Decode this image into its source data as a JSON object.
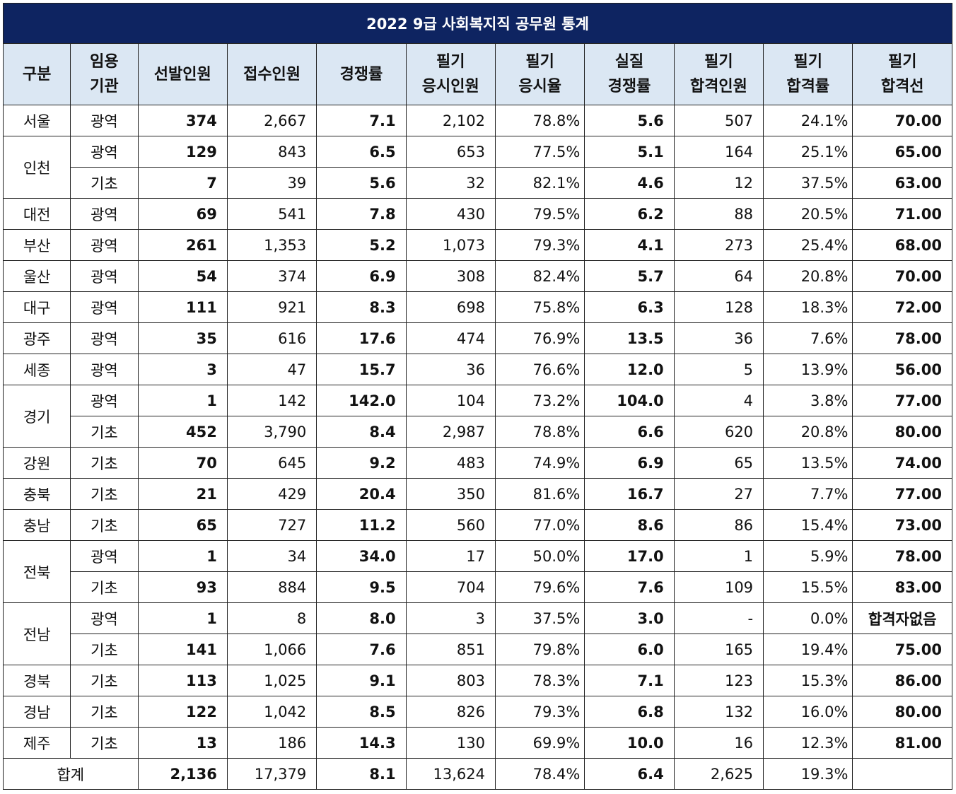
{
  "title": "2022 9급 사회복지직 공무원 통계",
  "headers": [
    [
      "구분"
    ],
    [
      "임용",
      "기관"
    ],
    [
      "선발인원"
    ],
    [
      "접수인원"
    ],
    [
      "경쟁률"
    ],
    [
      "필기",
      "응시인원"
    ],
    [
      "필기",
      "응시율"
    ],
    [
      "실질",
      "경쟁률"
    ],
    [
      "필기",
      "합격인원"
    ],
    [
      "필기",
      "합격률"
    ],
    [
      "필기",
      "합격선"
    ]
  ],
  "rows": [
    {
      "region": "서울",
      "type": "광역",
      "selected": "374",
      "applied": "2,667",
      "ratio": "7.1",
      "exam_takers": "2,102",
      "exam_rate": "78.8%",
      "real_ratio": "5.6",
      "passed": "507",
      "pass_rate": "24.1%",
      "pass_line": "70.00"
    },
    {
      "region": "인천",
      "type": "광역",
      "selected": "129",
      "applied": "843",
      "ratio": "6.5",
      "exam_takers": "653",
      "exam_rate": "77.5%",
      "real_ratio": "5.1",
      "passed": "164",
      "pass_rate": "25.1%",
      "pass_line": "65.00"
    },
    {
      "region": "",
      "type": "기초",
      "selected": "7",
      "applied": "39",
      "ratio": "5.6",
      "exam_takers": "32",
      "exam_rate": "82.1%",
      "real_ratio": "4.6",
      "passed": "12",
      "pass_rate": "37.5%",
      "pass_line": "63.00"
    },
    {
      "region": "대전",
      "type": "광역",
      "selected": "69",
      "applied": "541",
      "ratio": "7.8",
      "exam_takers": "430",
      "exam_rate": "79.5%",
      "real_ratio": "6.2",
      "passed": "88",
      "pass_rate": "20.5%",
      "pass_line": "71.00"
    },
    {
      "region": "부산",
      "type": "광역",
      "selected": "261",
      "applied": "1,353",
      "ratio": "5.2",
      "exam_takers": "1,073",
      "exam_rate": "79.3%",
      "real_ratio": "4.1",
      "passed": "273",
      "pass_rate": "25.4%",
      "pass_line": "68.00"
    },
    {
      "region": "울산",
      "type": "광역",
      "selected": "54",
      "applied": "374",
      "ratio": "6.9",
      "exam_takers": "308",
      "exam_rate": "82.4%",
      "real_ratio": "5.7",
      "passed": "64",
      "pass_rate": "20.8%",
      "pass_line": "70.00"
    },
    {
      "region": "대구",
      "type": "광역",
      "selected": "111",
      "applied": "921",
      "ratio": "8.3",
      "exam_takers": "698",
      "exam_rate": "75.8%",
      "real_ratio": "6.3",
      "passed": "128",
      "pass_rate": "18.3%",
      "pass_line": "72.00"
    },
    {
      "region": "광주",
      "type": "광역",
      "selected": "35",
      "applied": "616",
      "ratio": "17.6",
      "exam_takers": "474",
      "exam_rate": "76.9%",
      "real_ratio": "13.5",
      "passed": "36",
      "pass_rate": "7.6%",
      "pass_line": "78.00"
    },
    {
      "region": "세종",
      "type": "광역",
      "selected": "3",
      "applied": "47",
      "ratio": "15.7",
      "exam_takers": "36",
      "exam_rate": "76.6%",
      "real_ratio": "12.0",
      "passed": "5",
      "pass_rate": "13.9%",
      "pass_line": "56.00"
    },
    {
      "region": "경기",
      "type": "광역",
      "selected": "1",
      "applied": "142",
      "ratio": "142.0",
      "exam_takers": "104",
      "exam_rate": "73.2%",
      "real_ratio": "104.0",
      "passed": "4",
      "pass_rate": "3.8%",
      "pass_line": "77.00"
    },
    {
      "region": "",
      "type": "기초",
      "selected": "452",
      "applied": "3,790",
      "ratio": "8.4",
      "exam_takers": "2,987",
      "exam_rate": "78.8%",
      "real_ratio": "6.6",
      "passed": "620",
      "pass_rate": "20.8%",
      "pass_line": "80.00"
    },
    {
      "region": "강원",
      "type": "기초",
      "selected": "70",
      "applied": "645",
      "ratio": "9.2",
      "exam_takers": "483",
      "exam_rate": "74.9%",
      "real_ratio": "6.9",
      "passed": "65",
      "pass_rate": "13.5%",
      "pass_line": "74.00"
    },
    {
      "region": "충북",
      "type": "기초",
      "selected": "21",
      "applied": "429",
      "ratio": "20.4",
      "exam_takers": "350",
      "exam_rate": "81.6%",
      "real_ratio": "16.7",
      "passed": "27",
      "pass_rate": "7.7%",
      "pass_line": "77.00"
    },
    {
      "region": "충남",
      "type": "기초",
      "selected": "65",
      "applied": "727",
      "ratio": "11.2",
      "exam_takers": "560",
      "exam_rate": "77.0%",
      "real_ratio": "8.6",
      "passed": "86",
      "pass_rate": "15.4%",
      "pass_line": "73.00"
    },
    {
      "region": "전북",
      "type": "광역",
      "selected": "1",
      "applied": "34",
      "ratio": "34.0",
      "exam_takers": "17",
      "exam_rate": "50.0%",
      "real_ratio": "17.0",
      "passed": "1",
      "pass_rate": "5.9%",
      "pass_line": "78.00"
    },
    {
      "region": "",
      "type": "기초",
      "selected": "93",
      "applied": "884",
      "ratio": "9.5",
      "exam_takers": "704",
      "exam_rate": "79.6%",
      "real_ratio": "7.6",
      "passed": "109",
      "pass_rate": "15.5%",
      "pass_line": "83.00"
    },
    {
      "region": "전남",
      "type": "광역",
      "selected": "1",
      "applied": "8",
      "ratio": "8.0",
      "exam_takers": "3",
      "exam_rate": "37.5%",
      "real_ratio": "3.0",
      "passed": "-",
      "pass_rate": "0.0%",
      "pass_line": "합격자없음"
    },
    {
      "region": "",
      "type": "기초",
      "selected": "141",
      "applied": "1,066",
      "ratio": "7.6",
      "exam_takers": "851",
      "exam_rate": "79.8%",
      "real_ratio": "6.0",
      "passed": "165",
      "pass_rate": "19.4%",
      "pass_line": "75.00"
    },
    {
      "region": "경북",
      "type": "기초",
      "selected": "113",
      "applied": "1,025",
      "ratio": "9.1",
      "exam_takers": "803",
      "exam_rate": "78.3%",
      "real_ratio": "7.1",
      "passed": "123",
      "pass_rate": "15.3%",
      "pass_line": "86.00"
    },
    {
      "region": "경남",
      "type": "기초",
      "selected": "122",
      "applied": "1,042",
      "ratio": "8.5",
      "exam_takers": "826",
      "exam_rate": "79.3%",
      "real_ratio": "6.8",
      "passed": "132",
      "pass_rate": "16.0%",
      "pass_line": "80.00"
    },
    {
      "region": "제주",
      "type": "기초",
      "selected": "13",
      "applied": "186",
      "ratio": "14.3",
      "exam_takers": "130",
      "exam_rate": "69.9%",
      "real_ratio": "10.0",
      "passed": "16",
      "pass_rate": "12.3%",
      "pass_line": "81.00"
    }
  ],
  "total": {
    "label": "합계",
    "selected": "2,136",
    "applied": "17,379",
    "ratio": "8.1",
    "exam_takers": "13,624",
    "exam_rate": "78.4%",
    "real_ratio": "6.4",
    "passed": "2,625",
    "pass_rate": "19.3%",
    "pass_line": ""
  },
  "colors": {
    "title_bg": "#0e2461",
    "header_bg": "#dbe7f3",
    "pass_line_text": "#1f6db2"
  }
}
